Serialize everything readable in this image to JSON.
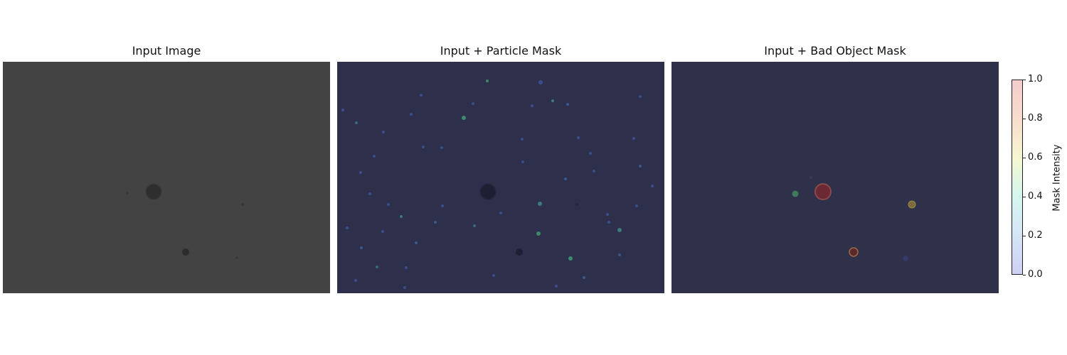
{
  "panels": [
    {
      "title": "Input Image"
    },
    {
      "title": "Input + Particle Mask"
    },
    {
      "title": "Input + Bad Object Mask"
    }
  ],
  "colorbar": {
    "label": "Mask Intensity",
    "ticks": [
      "0.0",
      "0.2",
      "0.4",
      "0.6",
      "0.8",
      "1.0"
    ],
    "range": [
      0.0,
      1.0
    ],
    "colormap": "jet (semi-transparent)"
  },
  "colors": {
    "input_background": "#434343",
    "particle_mask_background": "#2e2f4b",
    "bad_object_mask_background": "#2f3049"
  }
}
